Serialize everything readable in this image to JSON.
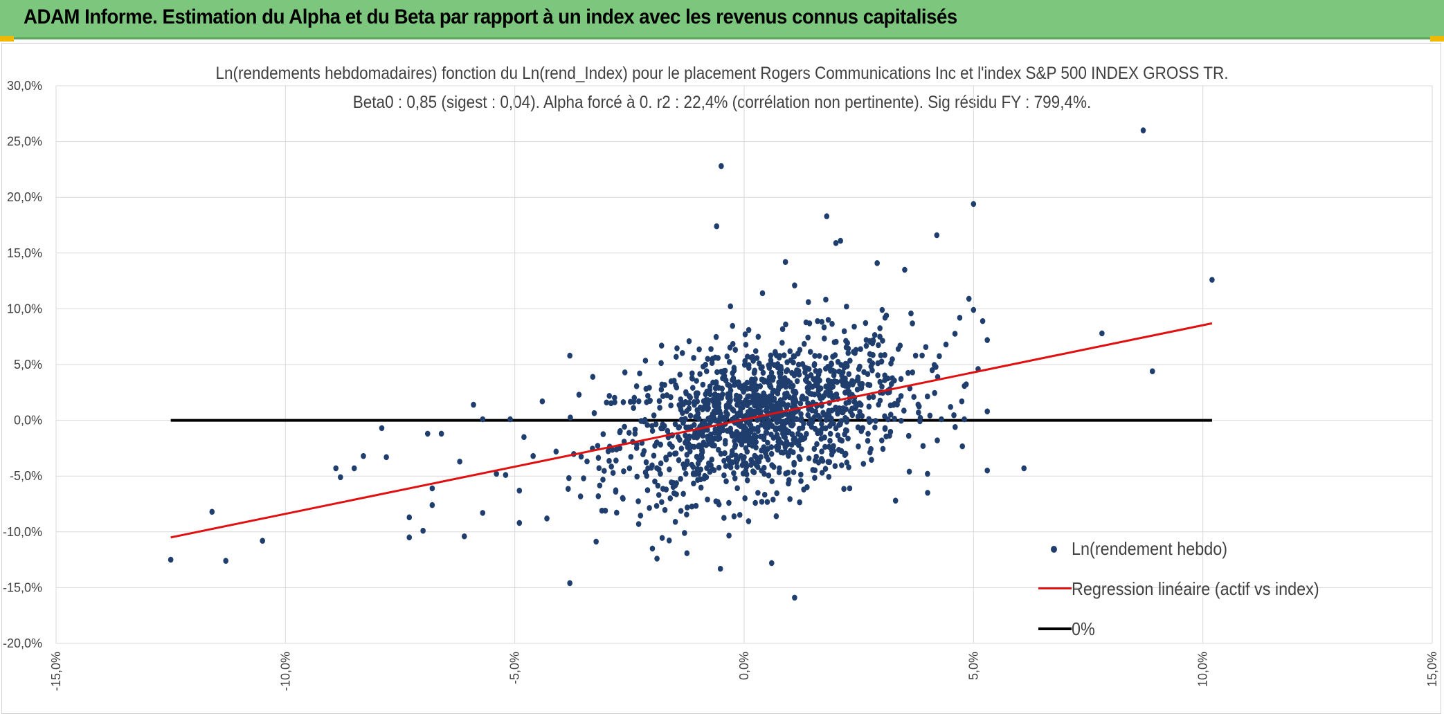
{
  "header": {
    "title": "ADAM Informe. Estimation du Alpha et du Beta par rapport à un index avec les revenus connus capitalisés"
  },
  "colors": {
    "header_bg": "#7dc67d",
    "points": "#1f3e6e",
    "regression": "#e01010",
    "zero_line": "#000000",
    "grid": "#d9d9d9"
  },
  "chart_data": {
    "type": "scatter",
    "title": "Ln(rendements hebdomadaires) fonction du Ln(rend_Index) pour le placement Rogers Communications Inc et l'index S&P 500 INDEX GROSS TR.",
    "subtitle": "Beta0 : 0,85 (sigest : 0,04). Alpha forcé à 0. r2 : 22,4% (corrélation non pertinente). Sig résidu FY : 799,4%.",
    "xlabel": "",
    "ylabel": "",
    "xlim": [
      -0.15,
      0.15
    ],
    "ylim": [
      -0.2,
      0.3
    ],
    "x_ticks": [
      "-15,0%",
      "-10,0%",
      "-5,0%",
      "0,0%",
      "5,0%",
      "10,0%",
      "15,0%"
    ],
    "y_ticks": [
      "30,0%",
      "25,0%",
      "20,0%",
      "15,0%",
      "10,0%",
      "5,0%",
      "0,0%",
      "-5,0%",
      "-10,0%",
      "-15,0%",
      "-20,0%"
    ],
    "grid": true,
    "legend_position": "bottom-right",
    "series": [
      {
        "name": "Ln(rendement hebdo)",
        "kind": "scatter",
        "points": [
          [
            -0.125,
            -0.125
          ],
          [
            -0.116,
            -0.082
          ],
          [
            -0.113,
            -0.126
          ],
          [
            -0.105,
            -0.108
          ],
          [
            -0.089,
            -0.043
          ],
          [
            -0.088,
            -0.051
          ],
          [
            -0.085,
            -0.043
          ],
          [
            -0.083,
            -0.032
          ],
          [
            -0.079,
            -0.007
          ],
          [
            -0.078,
            -0.033
          ],
          [
            -0.073,
            -0.087
          ],
          [
            -0.073,
            -0.105
          ],
          [
            -0.07,
            -0.099
          ],
          [
            -0.069,
            -0.012
          ],
          [
            -0.068,
            -0.076
          ],
          [
            -0.068,
            -0.061
          ],
          [
            -0.066,
            -0.012
          ],
          [
            -0.062,
            -0.037
          ],
          [
            -0.061,
            -0.104
          ],
          [
            -0.059,
            0.014
          ],
          [
            -0.057,
            0.001
          ],
          [
            -0.057,
            -0.083
          ],
          [
            -0.054,
            -0.048
          ],
          [
            -0.052,
            -0.049
          ],
          [
            -0.051,
            0.001
          ],
          [
            -0.049,
            -0.063
          ],
          [
            -0.049,
            -0.092
          ],
          [
            -0.048,
            -0.015
          ],
          [
            -0.046,
            -0.032
          ],
          [
            -0.044,
            0.017
          ],
          [
            -0.043,
            -0.088
          ],
          [
            -0.041,
            -0.028
          ],
          [
            -0.038,
            0.058
          ],
          [
            -0.038,
            -0.146
          ],
          [
            -0.036,
            0.023
          ],
          [
            -0.035,
            -0.052
          ],
          [
            -0.033,
            0.039
          ],
          [
            -0.031,
            -0.081
          ],
          [
            -0.03,
            0.016
          ],
          [
            -0.028,
            -0.064
          ],
          [
            -0.026,
            0.043
          ],
          [
            -0.025,
            -0.043
          ],
          [
            -0.023,
            -0.093
          ],
          [
            -0.021,
            0.022
          ],
          [
            -0.02,
            -0.115
          ],
          [
            -0.019,
            -0.124
          ],
          [
            -0.018,
            0.067
          ],
          [
            -0.017,
            -0.062
          ],
          [
            -0.015,
            -0.091
          ],
          [
            -0.014,
            0.041
          ],
          [
            -0.013,
            -0.101
          ],
          [
            -0.012,
            0.071
          ],
          [
            -0.011,
            0.056
          ],
          [
            -0.01,
            -0.034
          ],
          [
            -0.009,
            0.032
          ],
          [
            -0.008,
            -0.071
          ],
          [
            -0.007,
            0.054
          ],
          [
            -0.006,
            0.174
          ],
          [
            -0.005,
            0.228
          ],
          [
            -0.004,
            -0.041
          ],
          [
            -0.003,
            0.018
          ],
          [
            -0.002,
            -0.052
          ],
          [
            -0.001,
            0.021
          ],
          [
            0.0,
            -0.033
          ],
          [
            0.001,
            0.081
          ],
          [
            0.002,
            0.029
          ],
          [
            0.003,
            -0.065
          ],
          [
            0.004,
            0.114
          ],
          [
            0.005,
            0.035
          ],
          [
            0.006,
            -0.128
          ],
          [
            0.007,
            -0.086
          ],
          [
            0.008,
            0.048
          ],
          [
            0.009,
            0.142
          ],
          [
            0.01,
            0.062
          ],
          [
            0.011,
            0.121
          ],
          [
            0.011,
            -0.159
          ],
          [
            0.012,
            0.041
          ],
          [
            0.013,
            -0.062
          ],
          [
            0.014,
            0.106
          ],
          [
            0.015,
            0.016
          ],
          [
            0.016,
            0.089
          ],
          [
            0.017,
            -0.047
          ],
          [
            0.018,
            0.183
          ],
          [
            0.019,
            0.051
          ],
          [
            0.02,
            0.159
          ],
          [
            0.021,
            0.161
          ],
          [
            0.022,
            0.031
          ],
          [
            0.023,
            -0.061
          ],
          [
            0.024,
            0.084
          ],
          [
            0.025,
            0.046
          ],
          [
            0.026,
            -0.039
          ],
          [
            0.027,
            0.032
          ],
          [
            0.028,
            0.071
          ],
          [
            0.029,
            0.141
          ],
          [
            0.03,
            -0.018
          ],
          [
            0.031,
            0.094
          ],
          [
            0.032,
            0.051
          ],
          [
            0.033,
            -0.072
          ],
          [
            0.034,
            0.067
          ],
          [
            0.035,
            0.135
          ],
          [
            0.036,
            -0.046
          ],
          [
            0.037,
            0.021
          ],
          [
            0.038,
            0.007
          ],
          [
            0.039,
            -0.023
          ],
          [
            0.04,
            -0.065
          ],
          [
            0.041,
            0.045
          ],
          [
            0.042,
            0.166
          ],
          [
            0.043,
            0.001
          ],
          [
            0.044,
            0.068
          ],
          [
            0.045,
            0.012
          ],
          [
            0.046,
            -0.006
          ],
          [
            0.047,
            0.092
          ],
          [
            0.048,
            0.001
          ],
          [
            0.049,
            0.109
          ],
          [
            0.05,
            0.194
          ],
          [
            0.05,
            0.099
          ],
          [
            0.051,
            0.046
          ],
          [
            0.052,
            0.089
          ],
          [
            0.053,
            -0.045
          ],
          [
            0.053,
            0.072
          ],
          [
            0.053,
            0.008
          ],
          [
            0.061,
            -0.043
          ],
          [
            0.078,
            0.078
          ],
          [
            0.087,
            0.26
          ],
          [
            0.089,
            0.044
          ],
          [
            0.102,
            0.126
          ]
        ]
      },
      {
        "name": "Regression linéaire (actif vs index)",
        "kind": "line",
        "points": [
          [
            -0.125,
            -0.105
          ],
          [
            0.102,
            0.087
          ]
        ]
      },
      {
        "name": "0%",
        "kind": "line",
        "points": [
          [
            -0.125,
            0.0
          ],
          [
            0.102,
            0.0
          ]
        ]
      }
    ]
  }
}
